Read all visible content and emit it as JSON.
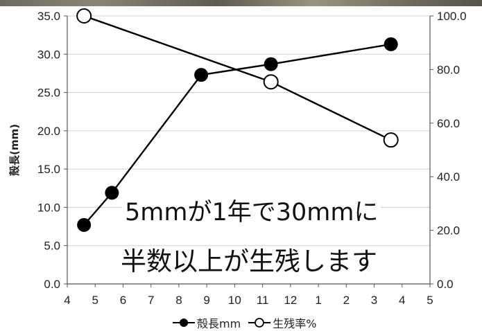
{
  "chart_data": {
    "type": "line",
    "x_tick_labels": [
      "4",
      "5",
      "6",
      "7",
      "8",
      "9",
      "10",
      "11",
      "12",
      "1",
      "2",
      "3",
      "4",
      "5"
    ],
    "y_left": {
      "label": "殻長(mm)",
      "min": 0,
      "max": 35,
      "ticks": [
        "0.0",
        "5.0",
        "10.0",
        "15.0",
        "20.0",
        "25.0",
        "30.0",
        "35.0"
      ]
    },
    "y_right": {
      "min": 0,
      "max": 100,
      "ticks": [
        "0.0",
        "20.0",
        "40.0",
        "60.0",
        "80.0",
        "100.0"
      ]
    },
    "series": [
      {
        "name": "殻長mm",
        "axis": "left",
        "marker": "filled",
        "color": "#000000",
        "points": [
          {
            "x": 4.6,
            "y": 7.7
          },
          {
            "x": 5.6,
            "y": 11.9
          },
          {
            "x": 8.8,
            "y": 27.3
          },
          {
            "x": 11.3,
            "y": 28.7
          },
          {
            "x": 15.6,
            "y": 31.3
          }
        ]
      },
      {
        "name": "生残率%",
        "axis": "right",
        "marker": "open",
        "color": "#000000",
        "points": [
          {
            "x": 4.6,
            "y": 100.0
          },
          {
            "x": 11.3,
            "y": 75.4
          },
          {
            "x": 15.6,
            "y": 53.7
          }
        ]
      }
    ],
    "grid": "horizontal",
    "legend_placement": "bottom-center"
  },
  "overlay_text": {
    "line1": "5mmが1年で30mmに",
    "line2": "半数以上が生残します"
  }
}
